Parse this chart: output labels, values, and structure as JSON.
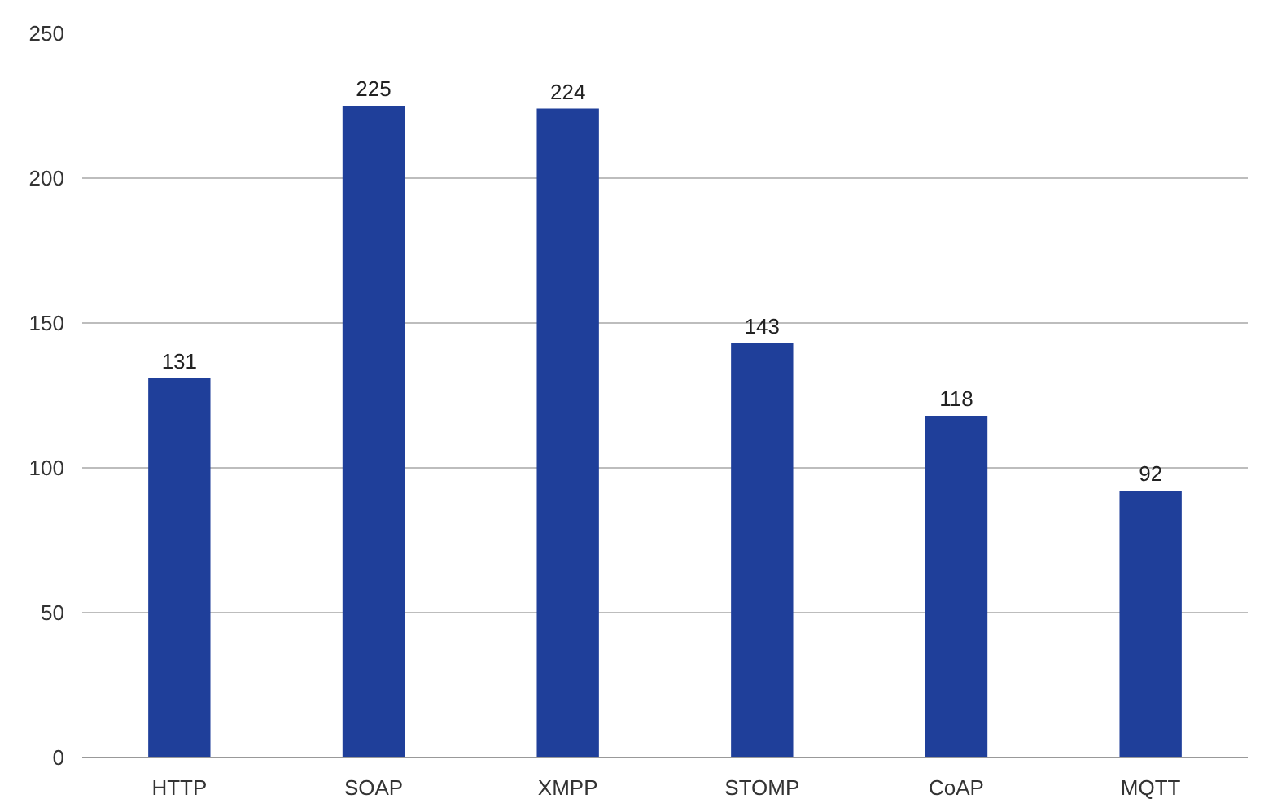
{
  "chart_data": {
    "type": "bar",
    "categories": [
      "HTTP",
      "SOAP",
      "XMPP",
      "STOMP",
      "CoAP",
      "MQTT"
    ],
    "values": [
      131,
      225,
      224,
      143,
      118,
      92
    ],
    "color": "#1f3f9a",
    "ylim": [
      0,
      250
    ],
    "yticks": [
      0,
      50,
      100,
      150,
      200,
      250
    ],
    "grid": "y",
    "data_labels": true
  }
}
